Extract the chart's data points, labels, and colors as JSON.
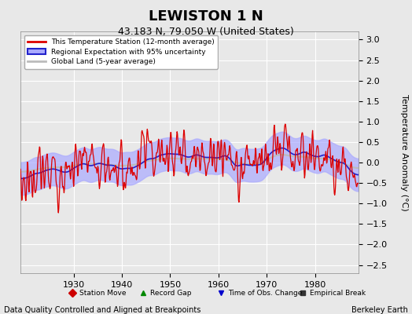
{
  "title": "LEWISTON 1 N",
  "subtitle": "43.183 N, 79.050 W (United States)",
  "ylabel": "Temperature Anomaly (°C)",
  "xlabel_note": "Data Quality Controlled and Aligned at Breakpoints",
  "credit": "Berkeley Earth",
  "year_start": 1919,
  "year_end": 1988,
  "ylim": [
    -2.7,
    3.2
  ],
  "yticks": [
    -2.5,
    -2,
    -1.5,
    -1,
    -0.5,
    0,
    0.5,
    1,
    1.5,
    2,
    2.5,
    3
  ],
  "xticks": [
    1930,
    1940,
    1950,
    1960,
    1970,
    1980
  ],
  "background_color": "#e8e8e8",
  "plot_bg_color": "#e8e8e8",
  "grid_color": "#ffffff",
  "station_color": "#dd0000",
  "regional_line_color": "#2222cc",
  "regional_fill_color": "#aaaaff",
  "global_color": "#bbbbbb",
  "legend_items": [
    "This Temperature Station (12-month average)",
    "Regional Expectation with 95% uncertainty",
    "Global Land (5-year average)"
  ],
  "marker_legend": [
    {
      "marker": "D",
      "color": "#cc0000",
      "label": "Station Move"
    },
    {
      "marker": "^",
      "color": "#008800",
      "label": "Record Gap"
    },
    {
      "marker": "v",
      "color": "#0000cc",
      "label": "Time of Obs. Change"
    },
    {
      "marker": "s",
      "color": "#333333",
      "label": "Empirical Break"
    }
  ]
}
